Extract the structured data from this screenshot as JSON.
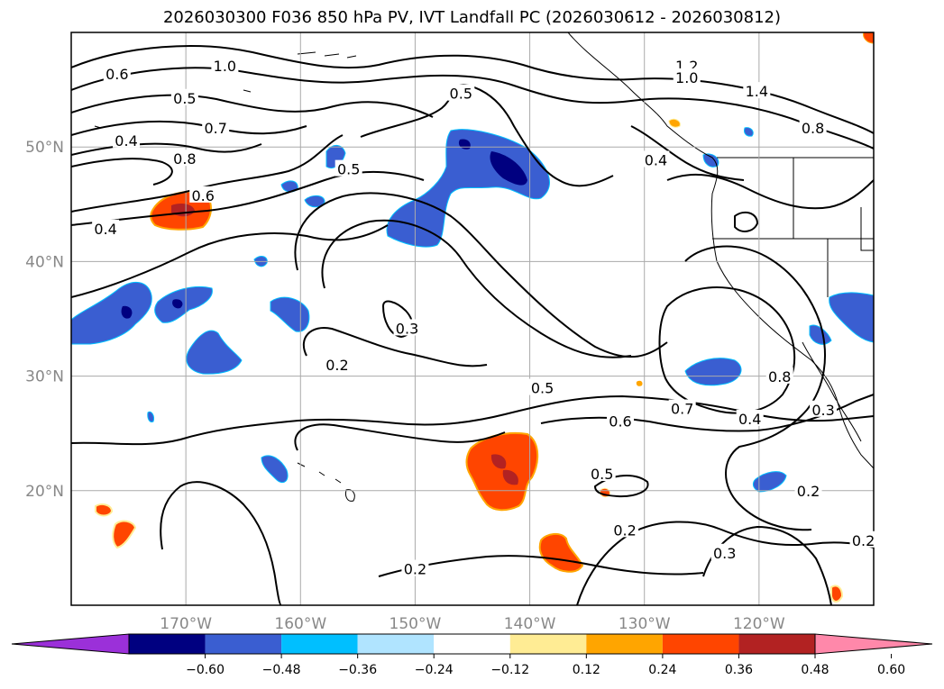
{
  "title": "2026030300 F036 850 hPa PV, IVT Landfall PC (2026030612 - 2026030812)",
  "map": {
    "lon_range": [
      -180,
      -110
    ],
    "lat_range": [
      10,
      60
    ],
    "lat_ticks": [
      {
        "value": 20,
        "label": "20°N"
      },
      {
        "value": 30,
        "label": "30°N"
      },
      {
        "value": 40,
        "label": "40°N"
      },
      {
        "value": 50,
        "label": "50°N"
      }
    ],
    "lon_ticks": [
      {
        "value": -170,
        "label": "170°W"
      },
      {
        "value": -160,
        "label": "160°W"
      },
      {
        "value": -150,
        "label": "150°W"
      },
      {
        "value": -140,
        "label": "140°W"
      },
      {
        "value": -130,
        "label": "130°W"
      },
      {
        "value": -120,
        "label": "120°W"
      }
    ],
    "grid": true,
    "contour_labels": [
      {
        "text": "0.6",
        "lon": -176.0,
        "lat": 56.3
      },
      {
        "text": "1.0",
        "lon": -166.6,
        "lat": 57.0
      },
      {
        "text": "0.5",
        "lon": -170.1,
        "lat": 54.2
      },
      {
        "text": "0.7",
        "lon": -167.4,
        "lat": 51.6
      },
      {
        "text": "0.4",
        "lon": -175.2,
        "lat": 50.5
      },
      {
        "text": "0.8",
        "lon": -170.1,
        "lat": 48.9
      },
      {
        "text": "0.6",
        "lon": -168.5,
        "lat": 45.7
      },
      {
        "text": "0.4",
        "lon": -177.0,
        "lat": 42.8
      },
      {
        "text": "0.5",
        "lon": -155.8,
        "lat": 48.0
      },
      {
        "text": "0.5",
        "lon": -146.0,
        "lat": 54.6
      },
      {
        "text": "1.2",
        "lon": -126.3,
        "lat": 57.0
      },
      {
        "text": "1.0",
        "lon": -126.3,
        "lat": 56.0
      },
      {
        "text": "1.4",
        "lon": -120.2,
        "lat": 54.8
      },
      {
        "text": "0.8",
        "lon": -115.3,
        "lat": 51.6
      },
      {
        "text": "0.4",
        "lon": -129.0,
        "lat": 48.8
      },
      {
        "text": "0.3",
        "lon": -150.7,
        "lat": 34.1
      },
      {
        "text": "0.2",
        "lon": -156.8,
        "lat": 30.9
      },
      {
        "text": "0.5",
        "lon": -138.9,
        "lat": 28.9
      },
      {
        "text": "0.6",
        "lon": -132.1,
        "lat": 26.0
      },
      {
        "text": "0.7",
        "lon": -126.7,
        "lat": 27.1
      },
      {
        "text": "0.4",
        "lon": -120.8,
        "lat": 26.2
      },
      {
        "text": "0.8",
        "lon": -118.2,
        "lat": 29.9
      },
      {
        "text": "0.3",
        "lon": -114.4,
        "lat": 27.0
      },
      {
        "text": "0.5",
        "lon": -133.7,
        "lat": 21.4
      },
      {
        "text": "0.2",
        "lon": -115.7,
        "lat": 19.9
      },
      {
        "text": "0.2",
        "lon": -131.7,
        "lat": 16.5
      },
      {
        "text": "0.2",
        "lon": -110.9,
        "lat": 15.6
      },
      {
        "text": "0.3",
        "lon": -123.0,
        "lat": 14.5
      },
      {
        "text": "0.2",
        "lon": -150.0,
        "lat": 13.1
      }
    ]
  },
  "colorbar": {
    "colors": [
      "#9b30d9",
      "#000080",
      "#3a5ed1",
      "#00bfff",
      "#b0e4ff",
      "#ffffff",
      "#ffec94",
      "#ffa500",
      "#ff4500",
      "#b22222",
      "#ff88aa"
    ],
    "tick_labels": [
      "−0.60",
      "−0.48",
      "−0.36",
      "−0.24",
      "−0.12",
      "0.12",
      "0.24",
      "0.36",
      "0.48",
      "0.60"
    ]
  }
}
